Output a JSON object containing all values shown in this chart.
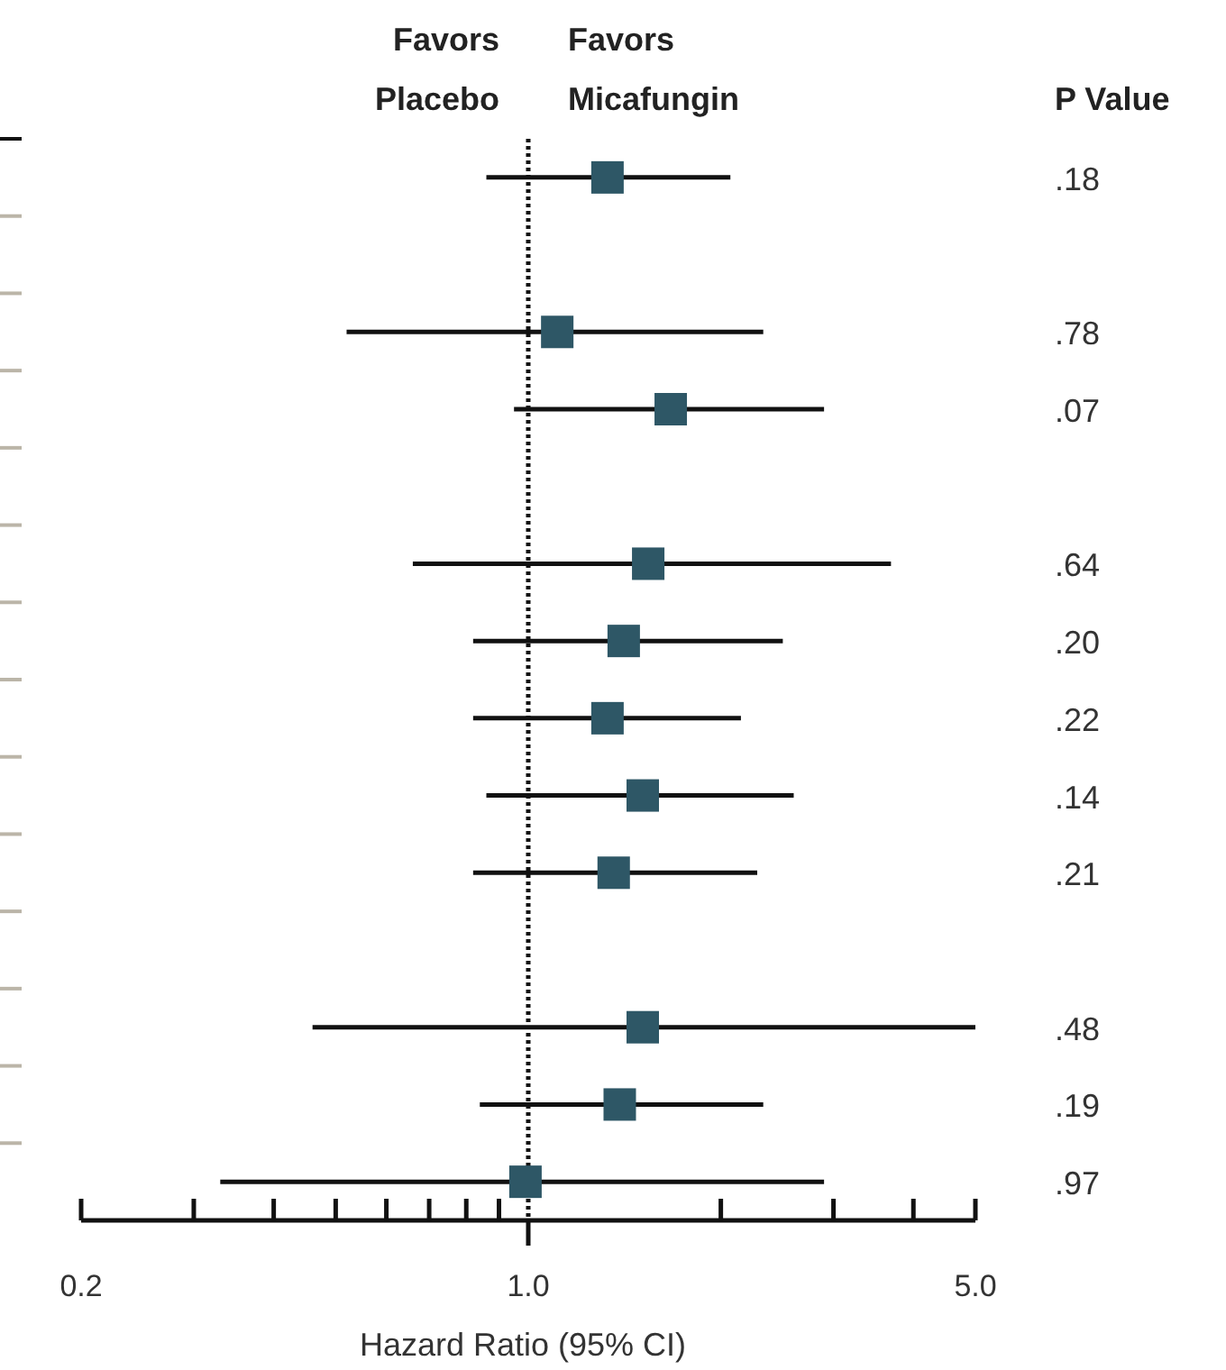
{
  "chart_data": {
    "type": "scatter",
    "orientation": "horizontal",
    "xlabel": "Hazard Ratio (95% CI)",
    "log": "x",
    "marker": "square",
    "tick_labels": "x",
    "categories": [
      null,
      null,
      null,
      null,
      null,
      null,
      null,
      null,
      null,
      null,
      null,
      null,
      null,
      null
    ],
    "series": [
      {
        "color": "#2e5766",
        "values": [
          1.33,
          null,
          1.11,
          1.67,
          null,
          1.54,
          1.41,
          1.33,
          1.51,
          1.36,
          null,
          1.51,
          1.39,
          0.99
        ],
        "errors": [
          [
            0.86,
            2.07
          ],
          null,
          [
            0.52,
            2.33
          ],
          [
            0.95,
            2.9
          ],
          null,
          [
            0.66,
            3.69
          ],
          [
            0.82,
            2.5
          ],
          [
            0.82,
            2.15
          ],
          [
            0.86,
            2.6
          ],
          [
            0.82,
            2.28
          ],
          null,
          [
            0.46,
            5.0
          ],
          [
            0.84,
            2.33
          ],
          [
            0.33,
            2.9
          ]
        ]
      }
    ],
    "xlim": [
      0.2,
      5.0
    ],
    "xticks": [
      {
        "value": 0.2,
        "label": "0.2"
      },
      {
        "value": 0.3,
        "label": null
      },
      {
        "value": 0.4,
        "label": null
      },
      {
        "value": 0.5,
        "label": null
      },
      {
        "value": 0.6,
        "label": null
      },
      {
        "value": 0.7,
        "label": null
      },
      {
        "value": 0.8,
        "label": null
      },
      {
        "value": 0.9,
        "label": null
      },
      {
        "value": 1.0,
        "label": "1.0"
      },
      {
        "value": 2,
        "label": null
      },
      {
        "value": 3,
        "label": null
      },
      {
        "value": 4,
        "label": null
      },
      {
        "value": 5.0,
        "label": "5.0"
      }
    ],
    "ref_lines": [
      {
        "axis": "x",
        "value": 1,
        "line_style": "dotted",
        "color": "#111111"
      }
    ],
    "annotations": [
      "Favors Placebo",
      "Favors Micafungin",
      "P Value",
      ".18",
      ".78",
      ".07",
      ".64",
      ".20",
      ".22",
      ".14",
      ".21",
      ".48",
      ".19",
      ".97"
    ]
  }
}
